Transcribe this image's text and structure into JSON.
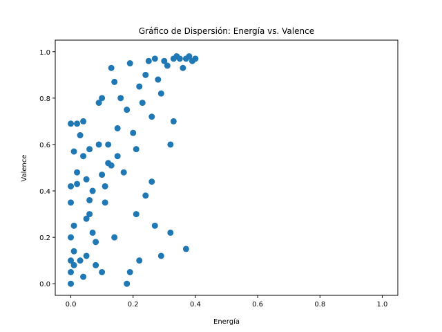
{
  "chart_data": {
    "type": "scatter",
    "title": "Gráfico de Dispersión: Energía vs. Valence",
    "xlabel": "Energía",
    "ylabel": "Valence",
    "xlim": [
      -0.05,
      1.05
    ],
    "ylim": [
      -0.05,
      1.05
    ],
    "xticks": [
      "0.0",
      "0.2",
      "0.4",
      "0.6",
      "0.8",
      "1.0"
    ],
    "yticks": [
      "0.0",
      "0.2",
      "0.4",
      "0.6",
      "0.8",
      "1.0"
    ],
    "xtick_values": [
      0,
      0.2,
      0.4,
      0.6,
      0.8,
      1.0
    ],
    "ytick_values": [
      0,
      0.2,
      0.4,
      0.6,
      0.8,
      1.0
    ],
    "grid": false,
    "legend": "none",
    "color": "#1f77b4",
    "series": [
      {
        "x": [
          0.0,
          0.0,
          0.0,
          0.0,
          0.0,
          0.0,
          0.0,
          0.01,
          0.01,
          0.01,
          0.02,
          0.02,
          0.03,
          0.04,
          0.04,
          0.05,
          0.05,
          0.06,
          0.06,
          0.07,
          0.08,
          0.09,
          0.1,
          0.1,
          0.1,
          0.11,
          0.12,
          0.13,
          0.14,
          0.14,
          0.15,
          0.16,
          0.17,
          0.18,
          0.19,
          0.2,
          0.21,
          0.22,
          0.23,
          0.24,
          0.25,
          0.26,
          0.27,
          0.28,
          0.29,
          0.3,
          0.31,
          0.32,
          0.33,
          0.34,
          0.35,
          0.36,
          0.37,
          0.38,
          0.39,
          0.4,
          0.15,
          0.21,
          0.26,
          0.32,
          0.37,
          0.19,
          0.24,
          0.29,
          0.33,
          0.27,
          0.22,
          0.18,
          0.12,
          0.09,
          0.03,
          0.05,
          0.07,
          0.02,
          0.01,
          0.04,
          0.06,
          0.08,
          0.11,
          0.13
        ],
        "y": [
          0.0,
          0.05,
          0.1,
          0.2,
          0.35,
          0.42,
          0.69,
          0.57,
          0.25,
          0.08,
          0.69,
          0.48,
          0.64,
          0.7,
          0.55,
          0.45,
          0.12,
          0.3,
          0.58,
          0.4,
          0.18,
          0.78,
          0.8,
          0.47,
          0.05,
          0.35,
          0.6,
          0.93,
          0.87,
          0.2,
          0.55,
          0.8,
          0.48,
          0.75,
          0.95,
          0.65,
          0.3,
          0.85,
          0.78,
          0.9,
          0.96,
          0.72,
          0.97,
          0.88,
          0.82,
          0.96,
          0.94,
          0.6,
          0.97,
          0.98,
          0.97,
          0.93,
          0.97,
          0.98,
          0.96,
          0.97,
          0.67,
          0.58,
          0.44,
          0.22,
          0.15,
          0.05,
          0.38,
          0.12,
          0.7,
          0.25,
          0.1,
          0.0,
          0.52,
          0.6,
          0.1,
          0.28,
          0.22,
          0.43,
          0.14,
          0.03,
          0.36,
          0.08,
          0.42,
          0.51
        ]
      }
    ]
  }
}
